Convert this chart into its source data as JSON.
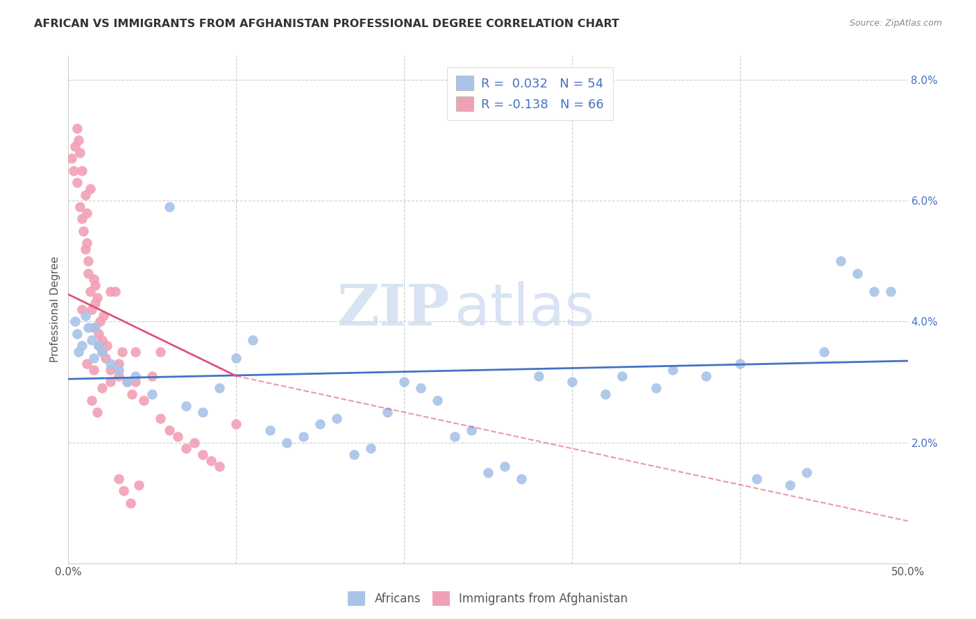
{
  "title": "AFRICAN VS IMMIGRANTS FROM AFGHANISTAN PROFESSIONAL DEGREE CORRELATION CHART",
  "source": "Source: ZipAtlas.com",
  "ylabel": "Professional Degree",
  "xlim": [
    0,
    50
  ],
  "ylim": [
    0,
    8.4
  ],
  "color_blue": "#a8c4e8",
  "color_pink": "#f2a0b5",
  "color_blue_line": "#4472c4",
  "color_pink_line": "#e05080",
  "watermark_zip": "ZIP",
  "watermark_atlas": "atlas",
  "legend1_label": "R =  0.032   N = 54",
  "legend2_label": "R = -0.138   N = 66",
  "legend_series1": "Africans",
  "legend_series2": "Immigrants from Afghanistan",
  "blue_line_x0": 0,
  "blue_line_y0": 3.05,
  "blue_line_x1": 50,
  "blue_line_y1": 3.35,
  "pink_solid_x0": 0,
  "pink_solid_y0": 4.45,
  "pink_solid_x1": 10,
  "pink_solid_y1": 3.1,
  "pink_dash_x0": 10,
  "pink_dash_y0": 3.1,
  "pink_dash_x1": 50,
  "pink_dash_y1": 0.7,
  "africans_x": [
    0.4,
    0.5,
    0.6,
    0.8,
    1.0,
    1.2,
    1.4,
    1.5,
    1.6,
    1.8,
    2.0,
    2.5,
    3.0,
    3.5,
    4.0,
    5.0,
    6.0,
    7.0,
    8.0,
    9.0,
    10.0,
    11.0,
    12.0,
    13.0,
    14.0,
    15.0,
    16.0,
    17.0,
    18.0,
    19.0,
    20.0,
    21.0,
    22.0,
    23.0,
    24.0,
    25.0,
    26.0,
    27.0,
    28.0,
    30.0,
    32.0,
    33.0,
    35.0,
    36.0,
    38.0,
    40.0,
    41.0,
    43.0,
    44.0,
    45.0,
    46.0,
    47.0,
    48.0,
    49.0
  ],
  "africans_y": [
    4.0,
    3.8,
    3.5,
    3.6,
    4.1,
    3.9,
    3.7,
    3.4,
    3.9,
    3.6,
    3.5,
    3.3,
    3.2,
    3.0,
    3.1,
    2.8,
    5.9,
    2.6,
    2.5,
    2.9,
    3.4,
    3.7,
    2.2,
    2.0,
    2.1,
    2.3,
    2.4,
    1.8,
    1.9,
    2.5,
    3.0,
    2.9,
    2.7,
    2.1,
    2.2,
    1.5,
    1.6,
    1.4,
    3.1,
    3.0,
    2.8,
    3.1,
    2.9,
    3.2,
    3.1,
    3.3,
    1.4,
    1.3,
    1.5,
    3.5,
    5.0,
    4.8,
    4.5,
    4.5
  ],
  "afghanistan_x": [
    0.2,
    0.3,
    0.4,
    0.5,
    0.6,
    0.5,
    0.7,
    0.8,
    0.7,
    0.9,
    1.0,
    0.8,
    1.0,
    1.1,
    1.2,
    1.1,
    1.3,
    1.2,
    1.4,
    1.5,
    1.3,
    1.6,
    1.5,
    1.7,
    1.6,
    1.8,
    1.9,
    2.0,
    1.8,
    2.1,
    2.0,
    2.2,
    2.5,
    2.3,
    2.8,
    3.0,
    3.2,
    3.5,
    2.5,
    3.0,
    3.8,
    4.0,
    4.5,
    5.0,
    5.5,
    6.0,
    6.5,
    7.0,
    7.5,
    8.0,
    8.5,
    9.0,
    10.0,
    4.0,
    5.5,
    1.5,
    1.7,
    2.0,
    2.5,
    3.0,
    3.3,
    3.7,
    4.2,
    0.8,
    1.1,
    1.4
  ],
  "afghanistan_y": [
    6.7,
    6.5,
    6.9,
    7.2,
    7.0,
    6.3,
    6.8,
    6.5,
    5.9,
    5.5,
    6.1,
    5.7,
    5.2,
    5.8,
    4.8,
    5.3,
    4.5,
    5.0,
    4.2,
    4.7,
    6.2,
    4.3,
    3.9,
    4.4,
    4.6,
    3.6,
    4.0,
    3.5,
    3.8,
    4.1,
    3.7,
    3.4,
    4.5,
    3.6,
    4.5,
    3.3,
    3.5,
    3.0,
    3.2,
    3.1,
    2.8,
    3.0,
    2.7,
    3.1,
    2.4,
    2.2,
    2.1,
    1.9,
    2.0,
    1.8,
    1.7,
    1.6,
    2.3,
    3.5,
    3.5,
    3.2,
    2.5,
    2.9,
    3.0,
    1.4,
    1.2,
    1.0,
    1.3,
    4.2,
    3.3,
    2.7
  ]
}
